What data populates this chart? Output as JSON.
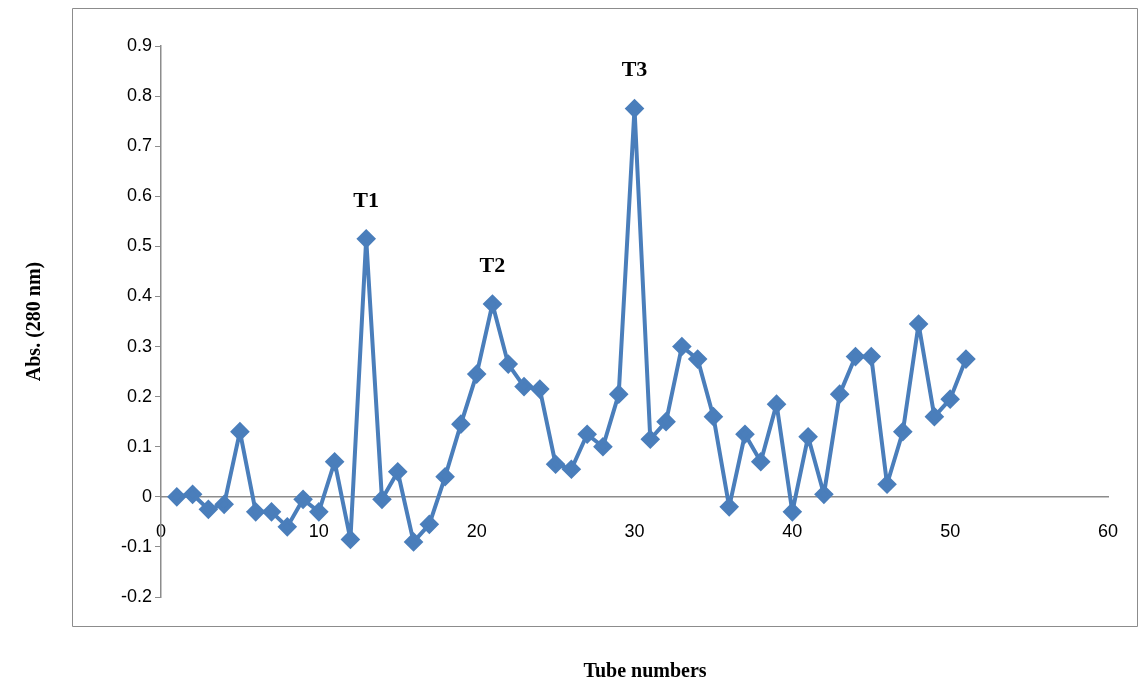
{
  "chart_data": {
    "type": "line",
    "xlabel": "Tube numbers",
    "ylabel": "Abs. (280 nm)",
    "x": [
      1,
      2,
      3,
      4,
      5,
      6,
      7,
      8,
      9,
      10,
      11,
      12,
      13,
      14,
      15,
      16,
      17,
      18,
      19,
      20,
      21,
      22,
      23,
      24,
      25,
      26,
      27,
      28,
      29,
      30,
      31,
      32,
      33,
      34,
      35,
      36,
      37,
      38,
      39,
      40,
      41,
      42,
      43,
      44,
      45,
      46,
      47,
      48,
      49,
      50,
      51
    ],
    "series": [
      {
        "color": "#4a7ebb",
        "values": [
          0,
          0.005,
          -0.025,
          -0.015,
          0.13,
          -0.03,
          -0.03,
          -0.06,
          -0.005,
          -0.03,
          0.07,
          -0.085,
          0.515,
          -0.005,
          0.05,
          -0.09,
          -0.055,
          0.04,
          0.145,
          0.245,
          0.385,
          0.265,
          0.22,
          0.215,
          0.065,
          0.055,
          0.125,
          0.1,
          0.205,
          0.775,
          0.115,
          0.15,
          0.3,
          0.275,
          0.16,
          -0.02,
          0.125,
          0.07,
          0.185,
          -0.03,
          0.12,
          0.005,
          0.205,
          0.28,
          0.28,
          0.025,
          0.13,
          0.345,
          0.16,
          0.195,
          0.275
        ]
      }
    ],
    "xlim": [
      0,
      60
    ],
    "xticks": [
      0,
      10,
      20,
      30,
      40,
      50,
      60
    ],
    "ylim": [
      -0.2,
      0.9
    ],
    "yticks": [
      -0.2,
      -0.1,
      0,
      0.1,
      0.2,
      0.3,
      0.4,
      0.5,
      0.6,
      0.7,
      0.8,
      0.9
    ],
    "annotations": [
      {
        "text": "T1",
        "x": 13,
        "y": 0.515
      },
      {
        "text": "T2",
        "x": 21,
        "y": 0.385
      },
      {
        "text": "T3",
        "x": 30,
        "y": 0.775
      }
    ],
    "grid": false,
    "legend": false,
    "marker": "diamond",
    "line_style": "solid"
  }
}
